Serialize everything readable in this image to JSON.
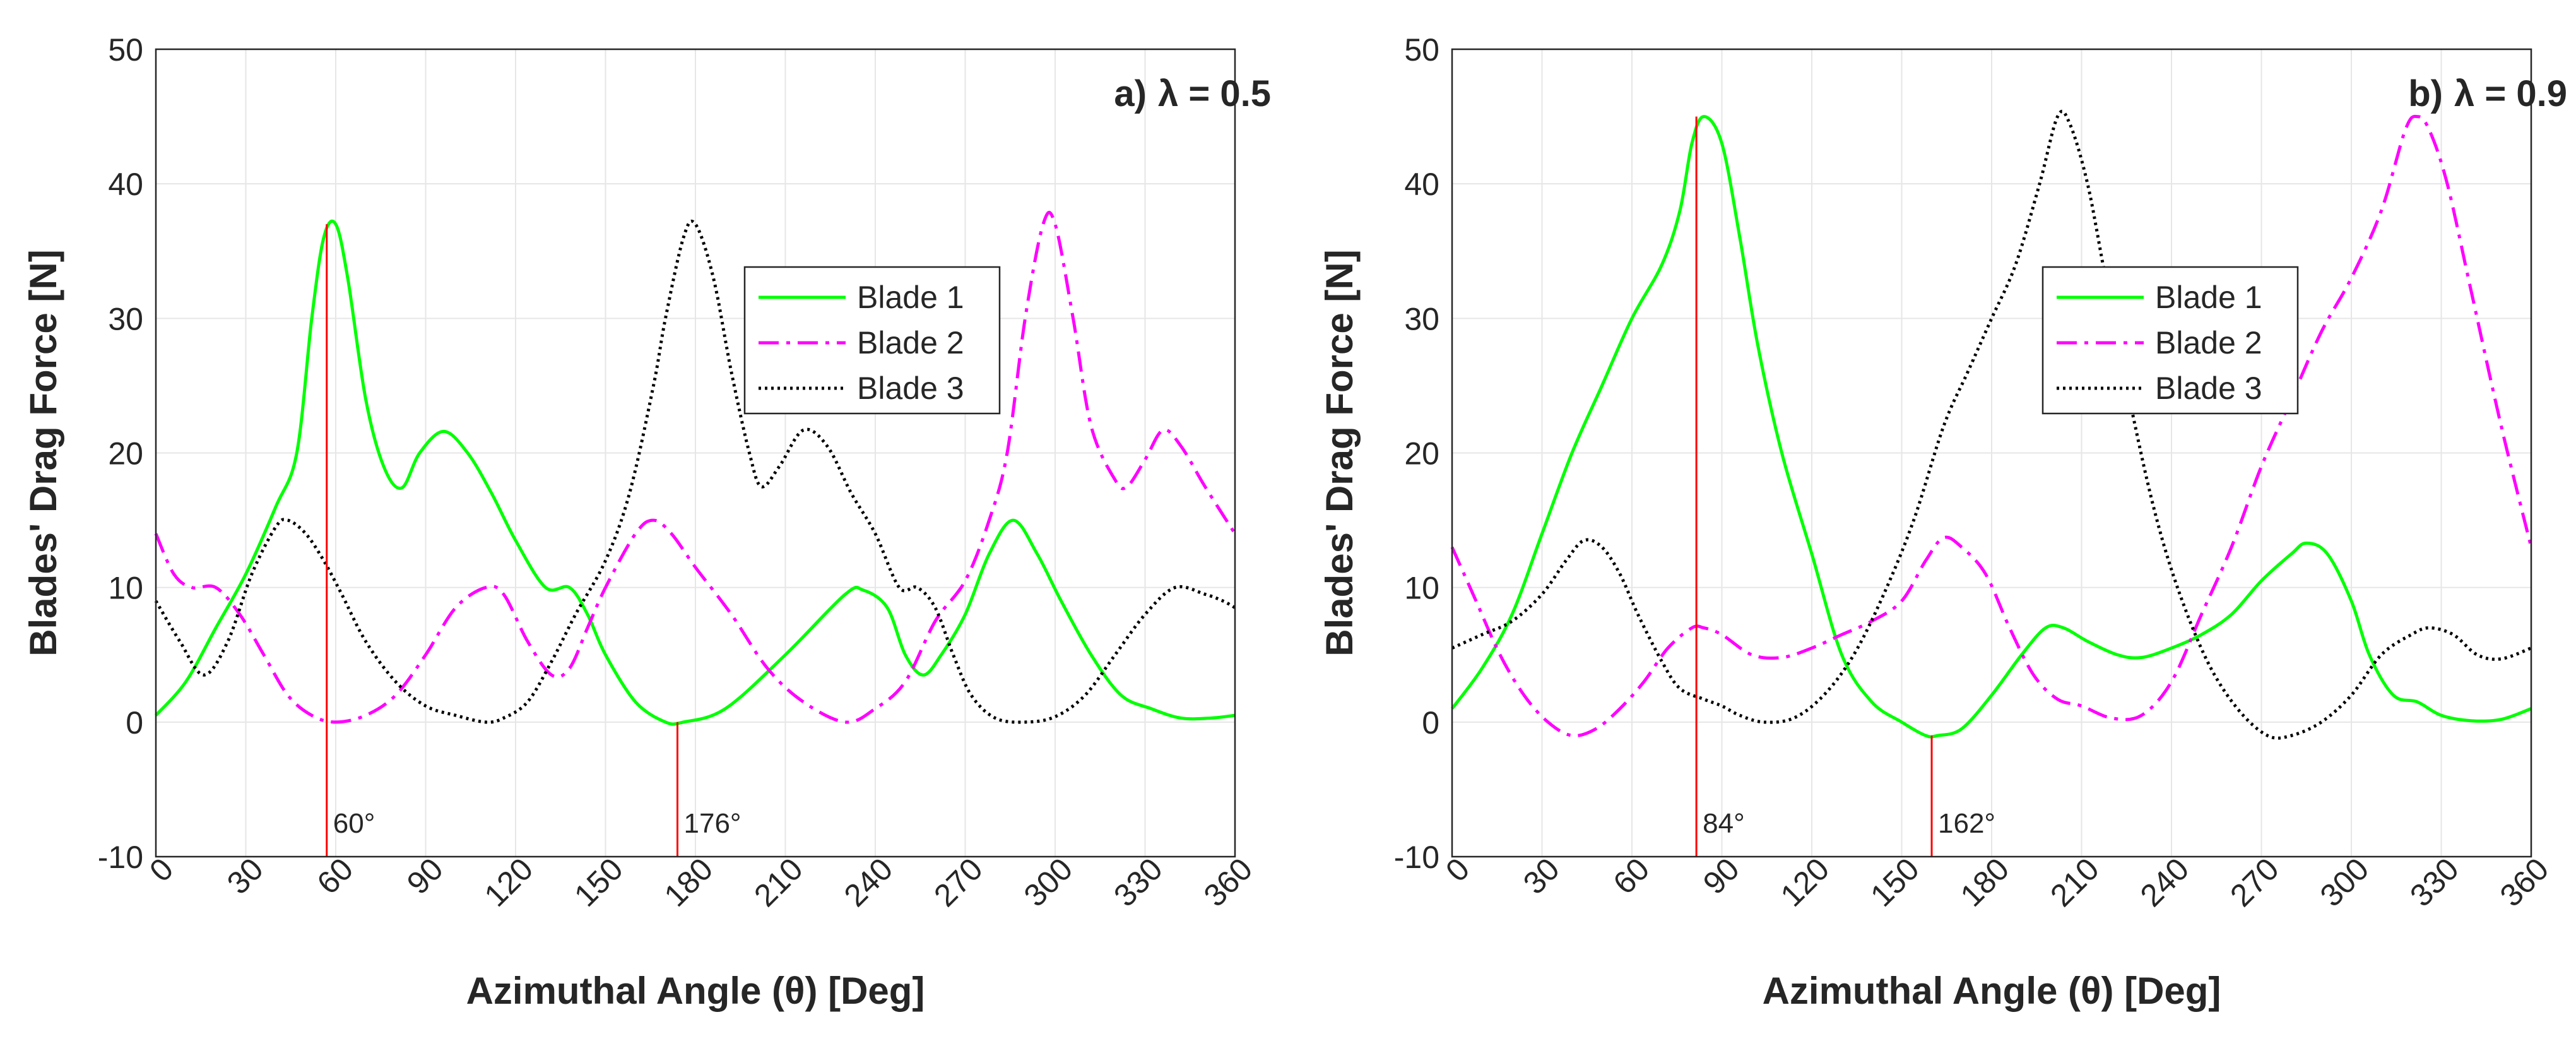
{
  "chart_data": [
    {
      "type": "line",
      "panel_label": "a)",
      "lambda_text": "λ = 0.5",
      "xlabel": "Azimuthal Angle (θ)  [Deg]",
      "ylabel": "Blades' Drag Force [N]",
      "xlim": [
        0,
        360
      ],
      "ylim": [
        -10,
        50
      ],
      "xticks": [
        0,
        30,
        60,
        90,
        120,
        150,
        180,
        210,
        240,
        270,
        300,
        330,
        360
      ],
      "yticks": [
        -10,
        0,
        10,
        20,
        30,
        40,
        50
      ],
      "grid": true,
      "legend_position": "upper-middle",
      "colors": {
        "blade1": "#00ff00",
        "blade2": "#ff00ff",
        "blade3": "#000000",
        "marker": "#ff0000"
      },
      "series": [
        {
          "name": "Blade 1",
          "style": "solid",
          "x": [
            0,
            10,
            20,
            30,
            40,
            47,
            52,
            56,
            60,
            64,
            70,
            76,
            82,
            88,
            96,
            104,
            112,
            120,
            130,
            138,
            144,
            150,
            160,
            170,
            176,
            190,
            210,
            230,
            236,
            244,
            250,
            256,
            262,
            270,
            278,
            286,
            294,
            302,
            312,
            322,
            332,
            342,
            352,
            360
          ],
          "y": [
            0.5,
            3,
            7,
            11,
            16,
            20,
            30,
            36,
            37,
            33,
            24,
            19,
            17.4,
            20,
            21.6,
            20,
            17,
            13.5,
            10,
            10,
            8,
            5,
            1.5,
            0,
            0,
            1,
            5,
            9.5,
            9.8,
            8.5,
            5,
            3.5,
            5,
            8,
            12.5,
            15,
            12.5,
            9,
            5,
            2,
            1,
            0.3,
            0.3,
            0.5
          ]
        },
        {
          "name": "Blade 2",
          "style": "dashdot",
          "x": [
            0,
            6,
            12,
            20,
            28,
            36,
            44,
            52,
            60,
            70,
            80,
            90,
            100,
            110,
            116,
            124,
            132,
            138,
            144,
            150,
            160,
            166,
            172,
            180,
            192,
            204,
            216,
            230,
            240,
            250,
            260,
            270,
            278,
            284,
            290,
            296,
            300,
            306,
            312,
            320,
            324,
            330,
            336,
            342,
            350,
            360
          ],
          "y": [
            14,
            11,
            10,
            10,
            8,
            5,
            2,
            0.5,
            0,
            0.5,
            2,
            5,
            8.5,
            10,
            9.5,
            6,
            3.5,
            4,
            7,
            10,
            14,
            15,
            14,
            11.5,
            8,
            4,
            1.5,
            0,
            1,
            3,
            7.5,
            10.5,
            15,
            20,
            30,
            37,
            37,
            30,
            22,
            18,
            17.5,
            19.5,
            21.7,
            20.5,
            17.5,
            14
          ]
        },
        {
          "name": "Blade 3",
          "style": "dotted",
          "x": [
            0,
            8,
            16,
            24,
            32,
            40,
            44,
            50,
            56,
            62,
            70,
            80,
            90,
            100,
            110,
            116,
            124,
            132,
            140,
            150,
            158,
            166,
            170,
            176,
            180,
            186,
            192,
            198,
            202,
            208,
            216,
            224,
            232,
            240,
            248,
            254,
            260,
            266,
            272,
            280,
            290,
            300,
            310,
            320,
            330,
            340,
            350,
            356,
            360
          ],
          "y": [
            9,
            6,
            3.5,
            6,
            11,
            14.5,
            15,
            14,
            12,
            9.5,
            6,
            3,
            1.2,
            0.5,
            0,
            0.3,
            1.5,
            4.5,
            8,
            12,
            17,
            25,
            30,
            36,
            37,
            33,
            26,
            20,
            17.5,
            19,
            21.7,
            20.5,
            17,
            14,
            10,
            10,
            8.5,
            5,
            2,
            0.3,
            0,
            0.4,
            2,
            5,
            8,
            10,
            9.5,
            9,
            8.5
          ]
        }
      ],
      "markers": [
        {
          "x": 57,
          "y_top": 37,
          "label": "60°"
        },
        {
          "x": 174,
          "y_top": 0,
          "label": "176°"
        }
      ]
    },
    {
      "type": "line",
      "panel_label": "b)",
      "lambda_text": "λ = 0.9",
      "xlabel": "Azimuthal Angle (θ)  [Deg]",
      "ylabel": "Blades' Drag Force [N]",
      "xlim": [
        0,
        360
      ],
      "ylim": [
        -10,
        50
      ],
      "xticks": [
        0,
        30,
        60,
        90,
        120,
        150,
        180,
        210,
        240,
        270,
        300,
        330,
        360
      ],
      "yticks": [
        -10,
        0,
        10,
        20,
        30,
        40,
        50
      ],
      "grid": true,
      "legend_position": "upper-middle",
      "colors": {
        "blade1": "#00ff00",
        "blade2": "#ff00ff",
        "blade3": "#000000",
        "marker": "#ff0000"
      },
      "series": [
        {
          "name": "Blade 1",
          "style": "solid",
          "x": [
            0,
            10,
            20,
            30,
            40,
            50,
            60,
            70,
            76,
            80,
            84,
            90,
            96,
            102,
            110,
            120,
            130,
            140,
            150,
            158,
            162,
            170,
            180,
            190,
            198,
            204,
            212,
            222,
            230,
            240,
            250,
            260,
            270,
            280,
            285,
            292,
            300,
            306,
            314,
            322,
            330,
            340,
            350,
            360
          ],
          "y": [
            1,
            4,
            8,
            14,
            20,
            25,
            30,
            34,
            38,
            43,
            45,
            43,
            36,
            28,
            20,
            12.5,
            5,
            1.5,
            0,
            -1,
            -1,
            -0.5,
            2,
            5,
            7,
            7,
            6,
            5,
            4.8,
            5.5,
            6.5,
            8,
            10.5,
            12.5,
            13.3,
            12.5,
            9,
            5,
            2,
            1.5,
            0.5,
            0.1,
            0.2,
            1
          ]
        },
        {
          "name": "Blade 2",
          "style": "dashdot",
          "x": [
            0,
            8,
            16,
            24,
            32,
            40,
            48,
            56,
            64,
            72,
            80,
            84,
            90,
            100,
            110,
            120,
            130,
            140,
            150,
            158,
            164,
            170,
            178,
            186,
            194,
            202,
            210,
            220,
            230,
            240,
            250,
            260,
            270,
            280,
            290,
            300,
            310,
            318,
            322,
            326,
            332,
            340,
            350,
            360
          ],
          "y": [
            13,
            9,
            5,
            2,
            0,
            -1,
            -0.5,
            1,
            3,
            5.5,
            7,
            7,
            6.5,
            5,
            4.8,
            5.5,
            6.5,
            7.5,
            9,
            12,
            13.7,
            13,
            11,
            7,
            3.5,
            1.7,
            1.2,
            0.3,
            0.5,
            3,
            8,
            13,
            19,
            24,
            29,
            33,
            38,
            44,
            45,
            44,
            40,
            32,
            22,
            13
          ]
        },
        {
          "name": "Blade 3",
          "style": "dotted",
          "x": [
            0,
            10,
            20,
            30,
            38,
            44,
            50,
            56,
            62,
            70,
            76,
            84,
            90,
            96,
            104,
            114,
            124,
            134,
            144,
            154,
            164,
            172,
            180,
            188,
            196,
            202,
            206,
            212,
            218,
            226,
            234,
            242,
            252,
            262,
            272,
            280,
            290,
            300,
            310,
            320,
            326,
            334,
            342,
            350,
            360
          ],
          "y": [
            5.5,
            6.5,
            7.5,
            9.5,
            12,
            13.5,
            13,
            11,
            8,
            4.5,
            2.5,
            1.7,
            1.2,
            0.5,
            0,
            0.3,
            2,
            5,
            9.5,
            15,
            22,
            26,
            30,
            34,
            40,
            45,
            44.5,
            40,
            33,
            24,
            16,
            10,
            4.5,
            1,
            -1,
            -1,
            0,
            2,
            5,
            6.5,
            7,
            6.5,
            5,
            4.7,
            5.5
          ]
        }
      ],
      "markers": [
        {
          "x": 81.5,
          "y_top": 45,
          "label": "84°"
        },
        {
          "x": 160,
          "y_top": -1,
          "label": "162°"
        }
      ]
    }
  ]
}
